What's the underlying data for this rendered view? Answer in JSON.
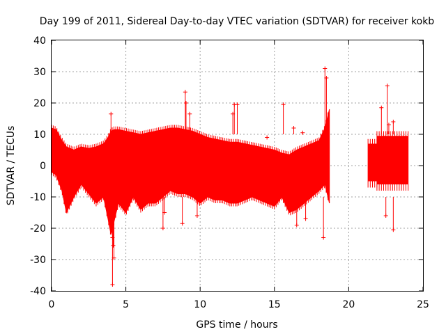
{
  "chart_data": {
    "type": "scatter",
    "title": "Day 199 of 2011, Sidereal Day-to-day VTEC variation (SDTVAR) for receiver kokb",
    "xlabel": "GPS time / hours",
    "ylabel": "SDTVAR / TECUs",
    "xlim": [
      0,
      25
    ],
    "ylim": [
      -40,
      40
    ],
    "x_ticks": [
      0,
      5,
      10,
      15,
      20,
      25
    ],
    "y_ticks": [
      -40,
      -30,
      -20,
      -10,
      0,
      10,
      20,
      30,
      40
    ],
    "grid": true,
    "marker": "+",
    "color": "#ff0000",
    "envelope": {
      "x": [
        0.0,
        0.3,
        0.7,
        1.0,
        1.5,
        2.0,
        2.5,
        3.0,
        3.5,
        3.8,
        4.0,
        4.2,
        4.5,
        5.0,
        5.5,
        6.0,
        6.5,
        7.0,
        7.5,
        8.0,
        8.5,
        9.0,
        9.5,
        10.0,
        10.5,
        11.0,
        11.5,
        12.0,
        12.5,
        13.0,
        13.5,
        14.0,
        14.5,
        15.0,
        15.5,
        16.0,
        16.5,
        17.0,
        17.5,
        18.0,
        18.4,
        18.7
      ],
      "upper": [
        12,
        11.5,
        8,
        6,
        5,
        6,
        5.5,
        6,
        7,
        9,
        11,
        11.5,
        11.5,
        11,
        10.5,
        10,
        10.5,
        11,
        11.5,
        12,
        12,
        11.5,
        11,
        10,
        9,
        8.5,
        8,
        7.5,
        7.5,
        7,
        6.5,
        6,
        5.5,
        5,
        4,
        3.5,
        5,
        6,
        7,
        8,
        12,
        18
      ],
      "lower": [
        -2,
        -3,
        -8,
        -15,
        -10,
        -6,
        -9,
        -12,
        -10,
        -17,
        -22,
        -18,
        -12,
        -15,
        -10,
        -14,
        -12,
        -12,
        -10,
        -8,
        -9,
        -9,
        -10,
        -12,
        -10,
        -11,
        -11,
        -12,
        -12,
        -11,
        -10,
        -11,
        -12,
        -13,
        -10,
        -15,
        -14,
        -12,
        -10,
        -8,
        -6,
        -12
      ],
      "blocks": [
        {
          "x_start": 21.3,
          "x_end": 21.9,
          "upper": 7,
          "lower": -5
        },
        {
          "x_start": 21.9,
          "x_end": 24.0,
          "upper": 9.5,
          "lower": -6
        }
      ]
    },
    "outliers": [
      {
        "x": 4.0,
        "y": 16.5
      },
      {
        "x": 4.1,
        "y": -23
      },
      {
        "x": 4.15,
        "y": -25.5
      },
      {
        "x": 4.2,
        "y": -29.5
      },
      {
        "x": 4.1,
        "y": -38
      },
      {
        "x": 9.0,
        "y": 23.5
      },
      {
        "x": 9.05,
        "y": 20
      },
      {
        "x": 9.3,
        "y": 16.5
      },
      {
        "x": 9.8,
        "y": -16
      },
      {
        "x": 8.8,
        "y": -18.5
      },
      {
        "x": 7.5,
        "y": -20
      },
      {
        "x": 7.6,
        "y": -15
      },
      {
        "x": 12.2,
        "y": 16.5
      },
      {
        "x": 12.3,
        "y": 19.5
      },
      {
        "x": 12.5,
        "y": 19.5
      },
      {
        "x": 14.5,
        "y": 9
      },
      {
        "x": 15.6,
        "y": 19.5
      },
      {
        "x": 16.3,
        "y": 12
      },
      {
        "x": 16.9,
        "y": 10.5
      },
      {
        "x": 16.5,
        "y": -19
      },
      {
        "x": 17.1,
        "y": -17
      },
      {
        "x": 18.3,
        "y": -23
      },
      {
        "x": 18.4,
        "y": 31
      },
      {
        "x": 18.5,
        "y": 28
      },
      {
        "x": 22.2,
        "y": 18.5
      },
      {
        "x": 22.6,
        "y": 25.5
      },
      {
        "x": 22.7,
        "y": 13
      },
      {
        "x": 23.0,
        "y": 14
      },
      {
        "x": 23.0,
        "y": -20.5
      },
      {
        "x": 22.5,
        "y": -16
      }
    ]
  }
}
